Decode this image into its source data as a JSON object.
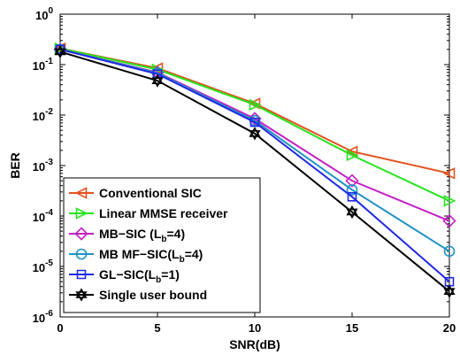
{
  "chart_data": {
    "type": "line",
    "xlabel": "SNR(dB)",
    "ylabel": "BER",
    "x": [
      0,
      5,
      10,
      15,
      20
    ],
    "xlim": [
      0,
      20
    ],
    "ylim": [
      1e-06,
      1
    ],
    "yscale": "log",
    "grid": false,
    "legend_position": "bottom-left",
    "xticks": [
      0,
      5,
      10,
      15,
      20
    ],
    "yticks": [
      {
        "value": 1,
        "base": "10",
        "exp": "0"
      },
      {
        "value": 0.1,
        "base": "10",
        "exp": "-1"
      },
      {
        "value": 0.01,
        "base": "10",
        "exp": "-2"
      },
      {
        "value": 0.001,
        "base": "10",
        "exp": "-3"
      },
      {
        "value": 0.0001,
        "base": "10",
        "exp": "-4"
      },
      {
        "value": 1e-05,
        "base": "10",
        "exp": "-5"
      },
      {
        "value": 1e-06,
        "base": "10",
        "exp": "-6"
      }
    ],
    "series": [
      {
        "name": "Conventional SIC",
        "name_main": "Conventional SIC",
        "name_sub": "",
        "name_tail": "",
        "color": "#e2531f",
        "marker": "triangle-left",
        "values": [
          0.21,
          0.085,
          0.017,
          0.0019,
          0.0007
        ]
      },
      {
        "name": "Linear MMSE receiver",
        "name_main": "Linear MMSE receiver",
        "name_sub": "",
        "name_tail": "",
        "color": "#27e31f",
        "marker": "triangle-right",
        "values": [
          0.21,
          0.08,
          0.016,
          0.0016,
          0.0002
        ]
      },
      {
        "name": "MB-SIC (Lb=4)",
        "name_main": "MB−SIC (L",
        "name_sub": "b",
        "name_tail": "=4)",
        "color": "#c41fc4",
        "marker": "diamond",
        "values": [
          0.2,
          0.07,
          0.0085,
          0.0005,
          8e-05
        ]
      },
      {
        "name": "MB MF-SIC(Lb=4)",
        "name_main": "MB MF−SIC(L",
        "name_sub": "b",
        "name_tail": "=4)",
        "color": "#1f91c4",
        "marker": "circle",
        "values": [
          0.2,
          0.068,
          0.0078,
          0.00033,
          2e-05
        ]
      },
      {
        "name": "GL-SIC(Lb=1)",
        "name_main": "GL−SIC(L",
        "name_sub": "b",
        "name_tail": "=1)",
        "color": "#1f2ae3",
        "marker": "square",
        "values": [
          0.2,
          0.065,
          0.0072,
          0.00024,
          5e-06
        ]
      },
      {
        "name": "Single user bound",
        "name_main": "Single user bound",
        "name_sub": "",
        "name_tail": "",
        "color": "#000000",
        "marker": "hexagram",
        "values": [
          0.18,
          0.048,
          0.0043,
          0.00012,
          3.2e-06
        ]
      }
    ]
  }
}
